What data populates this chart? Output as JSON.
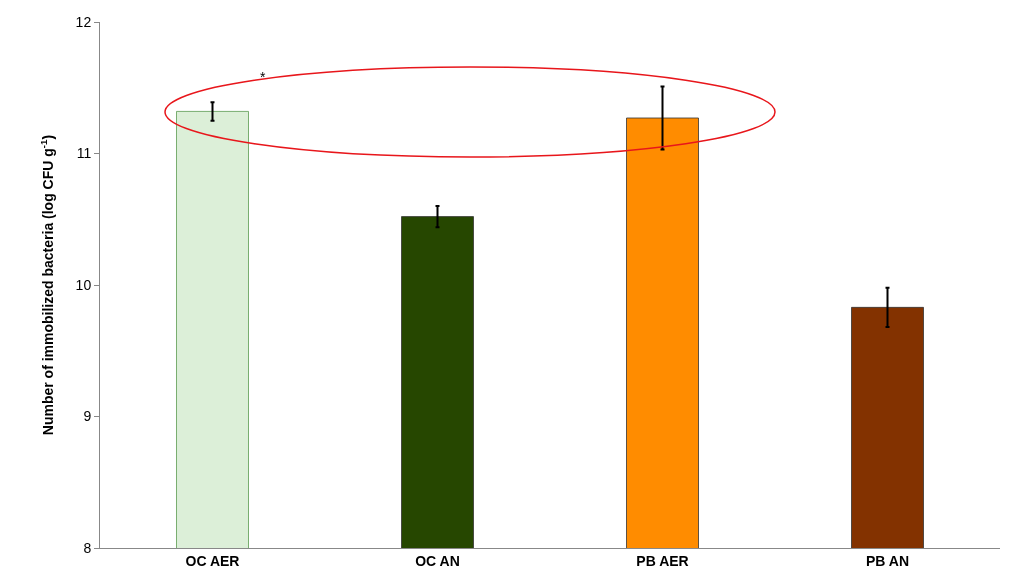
{
  "chart_data": {
    "type": "bar",
    "ylabel": "Number of immobilized bacteria (log CFU g$^{-1}$)",
    "categories": [
      "OC AER",
      "OC AN",
      "PB AER",
      "PB AN"
    ],
    "values": [
      11.32,
      10.52,
      11.27,
      9.83
    ],
    "colors": [
      "#dcefd8",
      "#264700",
      "#ff8c00",
      "#833200"
    ],
    "errors": [
      0.07,
      0.08,
      0.24,
      0.15
    ],
    "ylim": [
      8,
      12
    ],
    "yticks": [
      8,
      9,
      10,
      11,
      12
    ],
    "grid": false,
    "legend": false,
    "annotations": [
      "*"
    ]
  }
}
